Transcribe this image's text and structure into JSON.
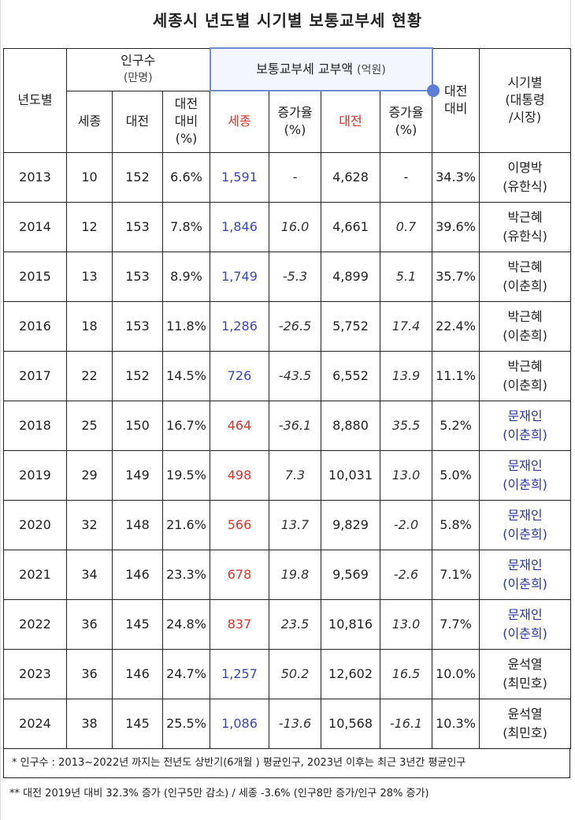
{
  "title": "세종시 년도별 시기별 보통교부세 현황",
  "headers": {
    "year": "년도별",
    "population": "인구수",
    "population_unit": "(만명)",
    "grant": "보통교부세 교부액",
    "grant_unit": "(억원)",
    "daejeon_ratio_top": "대전",
    "daejeon_ratio_bottom": "대비",
    "era_top": "시기별",
    "era_mid": "(대통령",
    "era_bottom": "/시장)",
    "pop_sejong": "세종",
    "pop_daejeon": "대전",
    "pop_ratio_1": "대전",
    "pop_ratio_2": "대비",
    "pop_ratio_3": "(%)",
    "grant_sejong": "세종",
    "grant_sejong_rate_1": "증가율",
    "grant_sejong_rate_2": "(%)",
    "grant_daejeon": "대전",
    "grant_daejeon_rate_1": "증가율",
    "grant_daejeon_rate_2": "(%)"
  },
  "rows": [
    {
      "year": "2013",
      "pop_sejong": "10",
      "pop_daejeon": "152",
      "pop_ratio": "6.6%",
      "grant_sejong": "1,591",
      "sejong_rate": "-",
      "grant_daejeon": "4,628",
      "daejeon_rate": "-",
      "ratio": "34.3%",
      "president": "이명박",
      "mayor": "(유한식)"
    },
    {
      "year": "2014",
      "pop_sejong": "12",
      "pop_daejeon": "153",
      "pop_ratio": "7.8%",
      "grant_sejong": "1,846",
      "sejong_rate": "16.0",
      "grant_daejeon": "4,661",
      "daejeon_rate": "0.7",
      "ratio": "39.6%",
      "president": "박근혜",
      "mayor": "(유한식)"
    },
    {
      "year": "2015",
      "pop_sejong": "13",
      "pop_daejeon": "153",
      "pop_ratio": "8.9%",
      "grant_sejong": "1,749",
      "sejong_rate": "-5.3",
      "grant_daejeon": "4,899",
      "daejeon_rate": "5.1",
      "ratio": "35.7%",
      "president": "박근혜",
      "mayor": "(이춘희)"
    },
    {
      "year": "2016",
      "pop_sejong": "18",
      "pop_daejeon": "153",
      "pop_ratio": "11.8%",
      "grant_sejong": "1,286",
      "sejong_rate": "-26.5",
      "grant_daejeon": "5,752",
      "daejeon_rate": "17.4",
      "ratio": "22.4%",
      "president": "박근혜",
      "mayor": "(이춘희)"
    },
    {
      "year": "2017",
      "pop_sejong": "22",
      "pop_daejeon": "152",
      "pop_ratio": "14.5%",
      "grant_sejong": "726",
      "sejong_rate": "-43.5",
      "grant_daejeon": "6,552",
      "daejeon_rate": "13.9",
      "ratio": "11.1%",
      "president": "박근혜",
      "mayor": "(이춘희)"
    },
    {
      "year": "2018",
      "pop_sejong": "25",
      "pop_daejeon": "150",
      "pop_ratio": "16.7%",
      "grant_sejong": "464",
      "sejong_rate": "-36.1",
      "grant_daejeon": "8,880",
      "daejeon_rate": "35.5",
      "ratio": "5.2%",
      "president": "문재인",
      "mayor": "(이춘희)"
    },
    {
      "year": "2019",
      "pop_sejong": "29",
      "pop_daejeon": "149",
      "pop_ratio": "19.5%",
      "grant_sejong": "498",
      "sejong_rate": "7.3",
      "grant_daejeon": "10,031",
      "daejeon_rate": "13.0",
      "ratio": "5.0%",
      "president": "문재인",
      "mayor": "(이춘희)"
    },
    {
      "year": "2020",
      "pop_sejong": "32",
      "pop_daejeon": "148",
      "pop_ratio": "21.6%",
      "grant_sejong": "566",
      "sejong_rate": "13.7",
      "grant_daejeon": "9,829",
      "daejeon_rate": "-2.0",
      "ratio": "5.8%",
      "president": "문재인",
      "mayor": "(이춘희)"
    },
    {
      "year": "2021",
      "pop_sejong": "34",
      "pop_daejeon": "146",
      "pop_ratio": "23.3%",
      "grant_sejong": "678",
      "sejong_rate": "19.8",
      "grant_daejeon": "9,569",
      "daejeon_rate": "-2.6",
      "ratio": "7.1%",
      "president": "문재인",
      "mayor": "(이춘희)"
    },
    {
      "year": "2022",
      "pop_sejong": "36",
      "pop_daejeon": "145",
      "pop_ratio": "24.8%",
      "grant_sejong": "837",
      "sejong_rate": "23.5",
      "grant_daejeon": "10,816",
      "daejeon_rate": "13.0",
      "ratio": "7.7%",
      "president": "문재인",
      "mayor": "(이춘희)"
    },
    {
      "year": "2023",
      "pop_sejong": "36",
      "pop_daejeon": "146",
      "pop_ratio": "24.7%",
      "grant_sejong": "1,257",
      "sejong_rate": "50.2",
      "grant_daejeon": "12,602",
      "daejeon_rate": "16.5",
      "ratio": "10.0%",
      "president": "윤석열",
      "mayor": "(최민호)"
    },
    {
      "year": "2024",
      "pop_sejong": "38",
      "pop_daejeon": "145",
      "pop_ratio": "25.5%",
      "grant_sejong": "1,086",
      "sejong_rate": "-13.6",
      "grant_daejeon": "10,568",
      "daejeon_rate": "-16.1",
      "ratio": "10.3%",
      "president": "윤석열",
      "mayor": "(최민호)"
    }
  ],
  "notes": {
    "note1": "* 인구수 : 2013~2022년 까지는 전년도 상반기(6개월 ) 평균인구,  2023년 이후는  최근 3년간 평균인구",
    "note2": "** 대전 2019년 대비 32.3% 증가 (인구5만 감소)  /  세종 -3.6% (인구8만 증가/인구 28% 증가)"
  },
  "colors": {
    "sejong_blue": "#3a47b8",
    "sejong_red": "#d9342b",
    "header_red": "#d9342b",
    "moon_blue": "#2436a8",
    "highlight_border": "#6f8fd4"
  }
}
